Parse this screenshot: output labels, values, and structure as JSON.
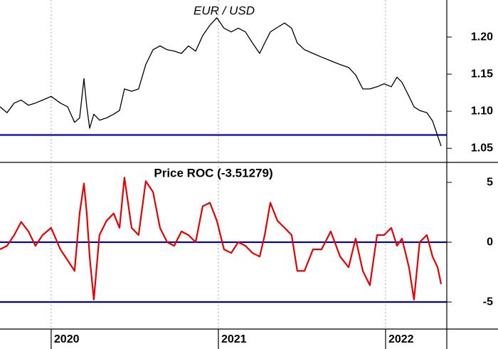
{
  "chart_data": [
    {
      "type": "line",
      "title": "EUR / USD",
      "x": [
        2019.694,
        2019.736,
        2019.779,
        2019.821,
        2019.864,
        2019.906,
        2019.949,
        2020.0,
        2020.055,
        2020.098,
        2020.14,
        2020.17,
        2020.196,
        2020.213,
        2020.23,
        2020.255,
        2020.289,
        2020.332,
        2020.374,
        2020.409,
        2020.438,
        2020.481,
        2020.523,
        2020.566,
        2020.609,
        2020.651,
        2020.694,
        2020.736,
        2020.779,
        2020.821,
        2020.864,
        2020.906,
        2020.949,
        2020.991,
        2021.034,
        2021.077,
        2021.119,
        2021.162,
        2021.204,
        2021.247,
        2021.277,
        2021.311,
        2021.353,
        2021.396,
        2021.438,
        2021.472,
        2021.515,
        2021.566,
        2021.617,
        2021.672,
        2021.728,
        2021.779,
        2021.821,
        2021.864,
        2021.906,
        2021.949,
        2021.991,
        2022.034,
        2022.068,
        2022.098,
        2022.14,
        2022.17,
        2022.204,
        2022.247,
        2022.281,
        2022.311,
        2022.332
      ],
      "series": [
        {
          "color": "#000000",
          "values": [
            1.106,
            1.098,
            1.111,
            1.115,
            1.108,
            1.111,
            1.115,
            1.12,
            1.111,
            1.106,
            1.085,
            1.091,
            1.144,
            1.106,
            1.077,
            1.096,
            1.088,
            1.091,
            1.096,
            1.101,
            1.13,
            1.127,
            1.13,
            1.163,
            1.183,
            1.188,
            1.183,
            1.181,
            1.178,
            1.188,
            1.181,
            1.202,
            1.216,
            1.226,
            1.212,
            1.207,
            1.212,
            1.207,
            1.192,
            1.178,
            1.192,
            1.207,
            1.213,
            1.219,
            1.212,
            1.192,
            1.183,
            1.178,
            1.173,
            1.168,
            1.163,
            1.159,
            1.149,
            1.13,
            1.13,
            1.133,
            1.137,
            1.133,
            1.146,
            1.139,
            1.12,
            1.106,
            1.101,
            1.098,
            1.087,
            1.067,
            1.053
          ]
        }
      ],
      "xlim": [
        2019.694,
        2022.366
      ],
      "xticks": [
        2020,
        2021,
        2022
      ],
      "ylim": [
        1.031,
        1.25
      ],
      "yticks": [
        1.05,
        {
          "value": 1.1,
          "label": "1.10"
        },
        1.15,
        {
          "value": 1.2,
          "label": "1.20"
        }
      ],
      "reference_lines": [
        {
          "value": 1.068,
          "color": "#0000b4"
        }
      ],
      "grid": true
    },
    {
      "type": "line",
      "title": "Price ROC (-3.51279)",
      "x": [
        2019.694,
        2019.736,
        2019.779,
        2019.821,
        2019.864,
        2019.906,
        2019.949,
        2020.0,
        2020.055,
        2020.098,
        2020.14,
        2020.17,
        2020.196,
        2020.213,
        2020.23,
        2020.255,
        2020.289,
        2020.332,
        2020.374,
        2020.409,
        2020.438,
        2020.481,
        2020.523,
        2020.566,
        2020.609,
        2020.651,
        2020.694,
        2020.736,
        2020.779,
        2020.821,
        2020.864,
        2020.906,
        2020.949,
        2020.991,
        2021.034,
        2021.077,
        2021.119,
        2021.162,
        2021.204,
        2021.247,
        2021.277,
        2021.311,
        2021.353,
        2021.396,
        2021.438,
        2021.472,
        2021.515,
        2021.566,
        2021.617,
        2021.672,
        2021.728,
        2021.779,
        2021.821,
        2021.864,
        2021.906,
        2021.949,
        2021.991,
        2022.034,
        2022.068,
        2022.098,
        2022.14,
        2022.17,
        2022.204,
        2022.247,
        2022.281,
        2022.311,
        2022.332
      ],
      "series": [
        {
          "color": "#e60000",
          "values": [
            -0.6,
            -0.3,
            0.6,
            1.7,
            0.9,
            -0.3,
            0.6,
            1.2,
            -0.6,
            -1.5,
            -2.4,
            2.4,
            4.9,
            2.4,
            -1.2,
            -4.8,
            0.6,
            1.8,
            2.4,
            1.2,
            5.4,
            1.2,
            0.6,
            5.1,
            4.2,
            1.2,
            0,
            -0.3,
            0.9,
            0.6,
            0,
            3.0,
            3.3,
            1.8,
            -0.6,
            -0.9,
            0,
            -0.3,
            -0.9,
            -1.2,
            0.6,
            3.3,
            1.8,
            1.2,
            0.6,
            -2.4,
            -2.4,
            -0.6,
            -0.6,
            0.9,
            -1.2,
            -2.1,
            0.3,
            -2.4,
            -3.6,
            0.6,
            0.6,
            1.2,
            -0.3,
            0.3,
            -2.1,
            -4.8,
            0,
            0.6,
            -1.2,
            -2.1,
            -3.5
          ]
        }
      ],
      "xlim": [
        2019.694,
        2022.366
      ],
      "xticks": [
        2020,
        2021,
        2022
      ],
      "ylim": [
        -7.26,
        6.67
      ],
      "yticks": [
        5,
        0,
        -5
      ],
      "reference_lines": [
        {
          "value": 0,
          "color": "#0000b4"
        },
        {
          "value": -5,
          "color": "#0000b4"
        }
      ],
      "grid": true
    }
  ]
}
